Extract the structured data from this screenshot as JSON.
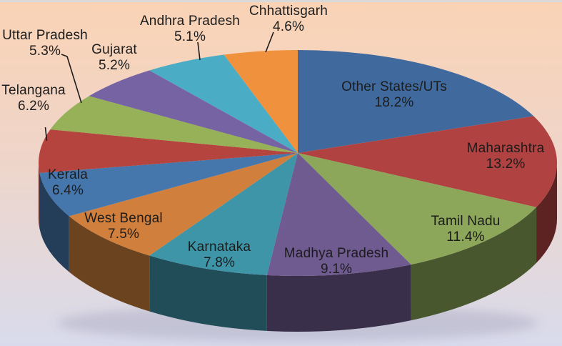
{
  "chart_data": {
    "type": "pie",
    "projection": "3d",
    "title": "",
    "legend_position": "none",
    "start_angle_deg": 0,
    "direction": "clockwise",
    "total": 100.0,
    "label_text_color": "#1C1C1C",
    "slices": [
      {
        "label": "Other States/UTs",
        "value": 18.2,
        "display": "18.2%",
        "color": "#406A9E"
      },
      {
        "label": "Maharashtra",
        "value": 13.2,
        "display": "13.2%",
        "color": "#B04341"
      },
      {
        "label": "Tamil Nadu",
        "value": 11.4,
        "display": "11.4%",
        "color": "#8CA75A"
      },
      {
        "label": "Madhya Pradesh",
        "value": 9.1,
        "display": "9.1%",
        "color": "#6F5B90"
      },
      {
        "label": "Karnataka",
        "value": 7.8,
        "display": "7.8%",
        "color": "#3E95A8"
      },
      {
        "label": "West Bengal",
        "value": 7.5,
        "display": "7.5%",
        "color": "#D0803C"
      },
      {
        "label": "Kerala",
        "value": 6.4,
        "display": "6.4%",
        "color": "#4577AD"
      },
      {
        "label": "Telangana",
        "value": 6.2,
        "display": "6.2%",
        "color": "#B5443F"
      },
      {
        "label": "Uttar Pradesh",
        "value": 5.3,
        "display": "5.3%",
        "color": "#96B158"
      },
      {
        "label": "Gujarat",
        "value": 5.2,
        "display": "5.2%",
        "color": "#7663A3"
      },
      {
        "label": "Andhra Pradesh",
        "value": 5.1,
        "display": "5.1%",
        "color": "#4AACC5"
      },
      {
        "label": "Chhattisgarh",
        "value": 4.6,
        "display": "4.6%",
        "color": "#F0913E"
      }
    ]
  },
  "background": {
    "gradient_top": "#FAD3B5",
    "gradient_middle": "#EFD5C9",
    "gradient_bottom": "#D9DBEC",
    "top_strip": "#D9D9D9"
  }
}
